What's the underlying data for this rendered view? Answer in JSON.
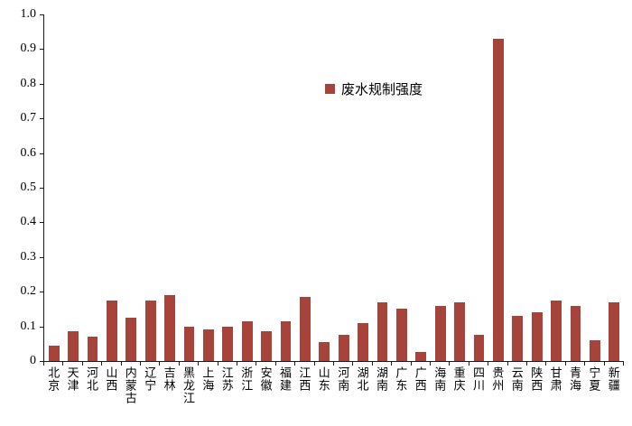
{
  "chart_data": {
    "type": "bar",
    "title": "",
    "legend_label": "废水规制强度",
    "bar_color": "#a6443c",
    "grid": false,
    "legend_position": "inside-top-center",
    "categories": [
      "北京",
      "天津",
      "河北",
      "山西",
      "内蒙古",
      "辽宁",
      "吉林",
      "黑龙江",
      "上海",
      "江苏",
      "浙江",
      "安徽",
      "福建",
      "江西",
      "山东",
      "河南",
      "湖北",
      "湖南",
      "广东",
      "广西",
      "海南",
      "重庆",
      "四川",
      "贵州",
      "云南",
      "陕西",
      "甘肃",
      "青海",
      "宁夏",
      "新疆"
    ],
    "values": [
      0.045,
      0.085,
      0.07,
      0.175,
      0.125,
      0.175,
      0.19,
      0.1,
      0.09,
      0.1,
      0.115,
      0.085,
      0.115,
      0.185,
      0.055,
      0.075,
      0.11,
      0.17,
      0.15,
      0.025,
      0.16,
      0.17,
      0.075,
      0.93,
      0.13,
      0.14,
      0.175,
      0.16,
      0.06,
      0.17
    ],
    "xlabel": "",
    "ylabel": "",
    "ylim": [
      0,
      1.0
    ],
    "yticks": [
      "0",
      "0.1",
      "0.2",
      "0.3",
      "0.4",
      "0.5",
      "0.6",
      "0.7",
      "0.8",
      "0.9",
      "1.0"
    ]
  }
}
